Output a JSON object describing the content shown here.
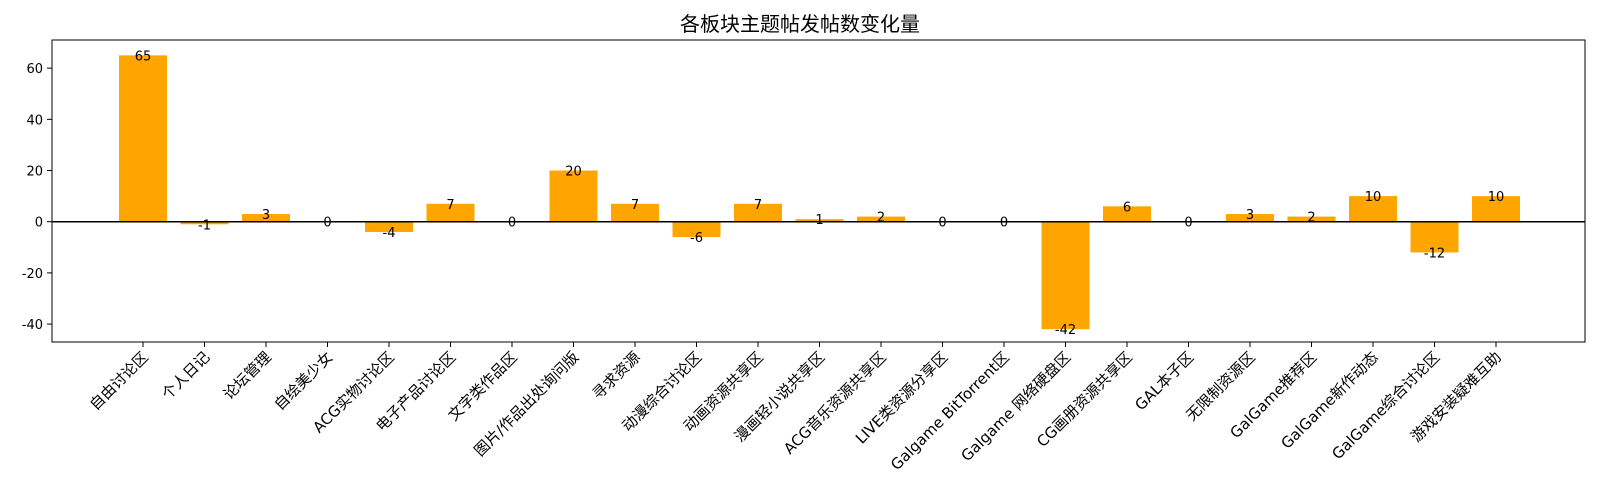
{
  "chart_data": {
    "type": "bar",
    "title": "各板块主题帖发帖数变化量",
    "xlabel": "",
    "ylabel": "",
    "ylim": [
      -47,
      71
    ],
    "yticks": [
      -40,
      -20,
      0,
      20,
      40,
      60
    ],
    "grid": false,
    "categories": [
      "自由讨论区",
      "个人日记",
      "论坛管理",
      "自绘美少女",
      "ACG实物讨论区",
      "电子产品讨论区",
      "文字类作品区",
      "图片/作品出处询问版",
      "寻求资源",
      "动漫综合讨论区",
      "动画资源共享区",
      "漫画轻小说共享区",
      "ACG音乐资源共享区",
      "LIVE类资源分享区",
      "Galgame BitTorrent区",
      "Galgame 网络硬盘区",
      "CG画册资源共享区",
      "GAL本子区",
      "无限制资源区",
      "GalGame推荐区",
      "GalGame新作动态",
      "GalGame综合讨论区",
      "游戏安装疑难互助"
    ],
    "values": [
      65,
      -1,
      3,
      0,
      -4,
      7,
      0,
      20,
      7,
      -6,
      7,
      1,
      2,
      0,
      0,
      -42,
      6,
      0,
      3,
      2,
      10,
      -12,
      10
    ],
    "data_labels": [
      "65",
      "-1",
      "3",
      "0",
      "-4",
      "7",
      "0",
      "20",
      "7",
      "-6",
      "7",
      "1",
      "2",
      "0",
      "0",
      "-42",
      "6",
      "0",
      "3",
      "2",
      "10",
      "-12",
      "10"
    ],
    "bar_color": "#FFA500"
  }
}
